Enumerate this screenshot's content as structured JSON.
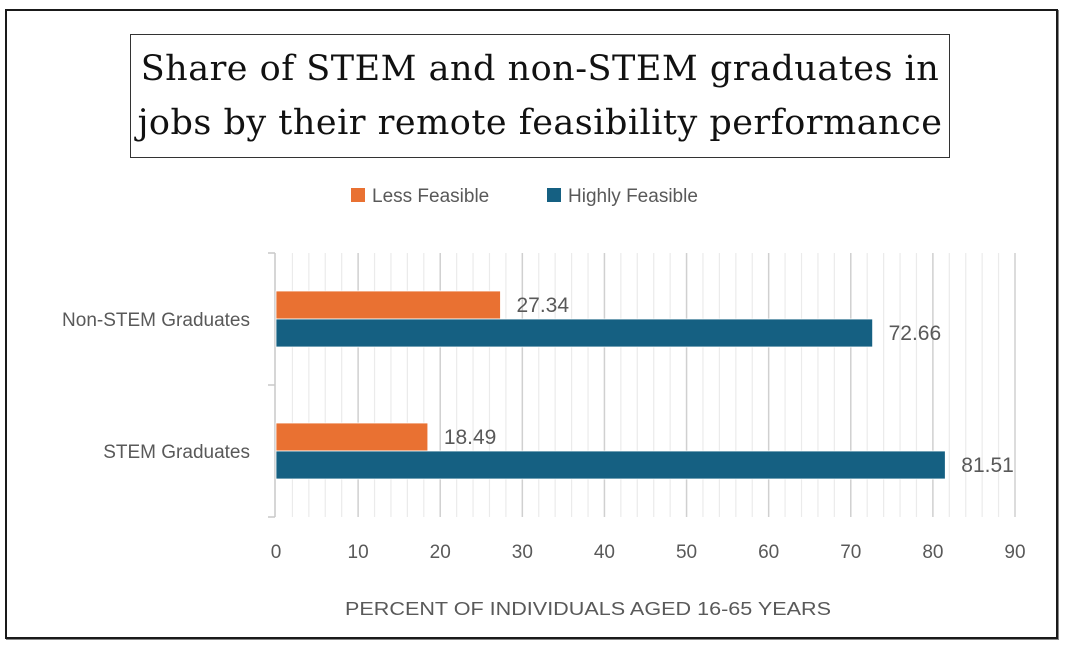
{
  "chart_data": {
    "type": "bar",
    "orientation": "horizontal",
    "title": "Share of STEM and non-STEM graduates in jobs by their remote feasibility performance",
    "title_lines": [
      "Share of STEM and non-STEM graduates in",
      "jobs by their remote feasibility performance"
    ],
    "categories": [
      "Non-STEM Graduates",
      "STEM Graduates"
    ],
    "series": [
      {
        "name": "Less Feasible",
        "color": "#E97132",
        "values": [
          27.34,
          18.49
        ]
      },
      {
        "name": "Highly Feasible",
        "color": "#156082",
        "values": [
          72.66,
          81.51
        ]
      }
    ],
    "data_labels": {
      "Less Feasible": [
        "27.34",
        "18.49"
      ],
      "Highly Feasible": [
        "72.66",
        "81.51"
      ]
    },
    "xlabel": "PERCENT OF INDIVIDUALS AGED 16-65 YEARS",
    "ylabel": "",
    "xlim": [
      0,
      90
    ],
    "xticks": [
      0,
      10,
      20,
      30,
      40,
      50,
      60,
      70,
      80,
      90
    ],
    "xtick_labels": [
      "0",
      "10",
      "20",
      "30",
      "40",
      "50",
      "60",
      "70",
      "80",
      "90"
    ],
    "minor_tick_step": 2,
    "grid": true,
    "legend": {
      "position": "top-center",
      "entries": [
        "Less Feasible",
        "Highly Feasible"
      ]
    }
  }
}
